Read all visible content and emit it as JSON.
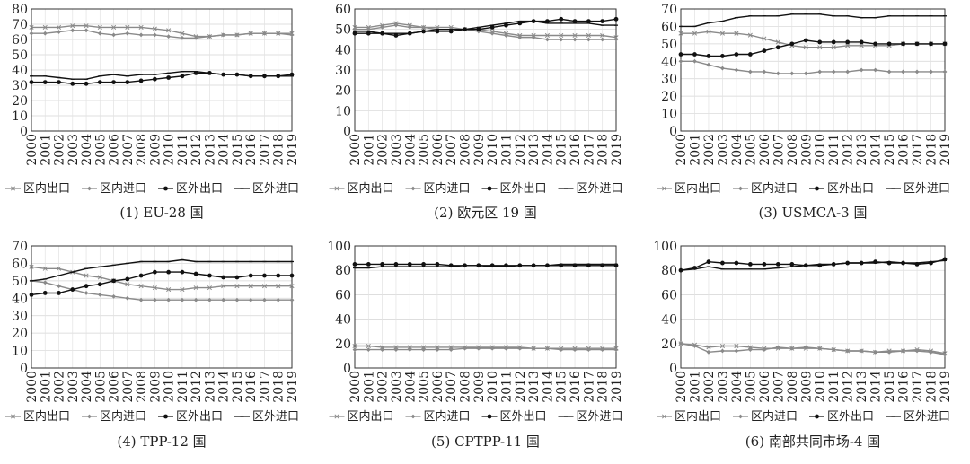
{
  "legend_labels": [
    "区内出口",
    "区内进口",
    "区外出口",
    "区外进口"
  ],
  "years": [
    "2000",
    "2001",
    "2002",
    "2003",
    "2004",
    "2005",
    "2006",
    "2007",
    "2008",
    "2009",
    "2010",
    "2011",
    "2012",
    "2013",
    "2014",
    "2015",
    "2016",
    "2017",
    "2018",
    "2019"
  ],
  "colors": {
    "intra_export": "#8a8a8a",
    "intra_import": "#8a8a8a",
    "extra_export": "#111111",
    "extra_import": "#111111"
  },
  "chart_data": [
    {
      "type": "line",
      "title": "(1) EU-28 国",
      "ylim": [
        0,
        80
      ],
      "yticks": [
        0,
        10,
        20,
        30,
        40,
        50,
        60,
        70,
        80
      ],
      "series": [
        {
          "name": "区内出口",
          "values": [
            68,
            68,
            68,
            69,
            69,
            68,
            68,
            68,
            68,
            67,
            66,
            64,
            62,
            62,
            63,
            63,
            64,
            64,
            64,
            64
          ]
        },
        {
          "name": "区内进口",
          "values": [
            64,
            64,
            65,
            66,
            66,
            64,
            63,
            64,
            63,
            63,
            62,
            61,
            61,
            62,
            63,
            63,
            64,
            64,
            64,
            63
          ]
        },
        {
          "name": "区外出口",
          "values": [
            32,
            32,
            32,
            31,
            31,
            32,
            32,
            32,
            33,
            34,
            35,
            36,
            38,
            38,
            37,
            37,
            36,
            36,
            36,
            37
          ]
        },
        {
          "name": "区外进口",
          "values": [
            36,
            36,
            35,
            34,
            34,
            36,
            37,
            36,
            37,
            37,
            38,
            39,
            39,
            38,
            37,
            37,
            36,
            36,
            36,
            36
          ]
        }
      ]
    },
    {
      "type": "line",
      "title": "(2) 欧元区 19 国",
      "ylim": [
        0,
        60
      ],
      "yticks": [
        0,
        10,
        20,
        30,
        40,
        50,
        60
      ],
      "series": [
        {
          "name": "区内出口",
          "values": [
            51,
            51,
            52,
            53,
            52,
            51,
            51,
            51,
            50,
            50,
            49,
            48,
            47,
            47,
            47,
            47,
            47,
            47,
            47,
            46
          ]
        },
        {
          "name": "区内进口",
          "values": [
            50,
            50,
            51,
            52,
            51,
            51,
            50,
            50,
            50,
            49,
            48,
            47,
            46,
            46,
            45,
            45,
            45,
            45,
            45,
            45
          ]
        },
        {
          "name": "区外出口",
          "values": [
            48,
            48,
            48,
            47,
            48,
            49,
            49,
            49,
            50,
            50,
            51,
            52,
            53,
            54,
            54,
            55,
            54,
            54,
            54,
            55
          ]
        },
        {
          "name": "区外进口",
          "values": [
            49,
            49,
            48,
            48,
            48,
            49,
            50,
            50,
            50,
            51,
            52,
            53,
            54,
            54,
            53,
            53,
            53,
            53,
            52,
            52
          ]
        }
      ]
    },
    {
      "type": "line",
      "title": "(3) USMCA-3 国",
      "ylim": [
        0,
        70
      ],
      "yticks": [
        0,
        10,
        20,
        30,
        40,
        50,
        60,
        70
      ],
      "series": [
        {
          "name": "区内出口",
          "values": [
            56,
            56,
            57,
            56,
            56,
            55,
            53,
            51,
            49,
            48,
            48,
            48,
            49,
            49,
            49,
            49,
            50,
            50,
            50,
            50
          ]
        },
        {
          "name": "区内进口",
          "values": [
            40,
            40,
            38,
            36,
            35,
            34,
            34,
            33,
            33,
            33,
            34,
            34,
            34,
            35,
            35,
            34,
            34,
            34,
            34,
            34
          ]
        },
        {
          "name": "区外出口",
          "values": [
            44,
            44,
            43,
            43,
            44,
            44,
            46,
            48,
            50,
            52,
            51,
            51,
            51,
            51,
            50,
            50,
            50,
            50,
            50,
            50
          ]
        },
        {
          "name": "区外进口",
          "values": [
            60,
            60,
            62,
            63,
            65,
            66,
            66,
            66,
            67,
            67,
            67,
            66,
            66,
            65,
            65,
            66,
            66,
            66,
            66,
            66
          ]
        }
      ]
    },
    {
      "type": "line",
      "title": "(4) TPP-12 国",
      "ylim": [
        0,
        70
      ],
      "yticks": [
        0,
        10,
        20,
        30,
        40,
        50,
        60,
        70
      ],
      "series": [
        {
          "name": "区内出口",
          "values": [
            58,
            57,
            57,
            55,
            53,
            52,
            50,
            48,
            47,
            46,
            45,
            45,
            46,
            46,
            47,
            47,
            47,
            47,
            47,
            47
          ]
        },
        {
          "name": "区内进口",
          "values": [
            50,
            49,
            47,
            45,
            43,
            42,
            41,
            40,
            39,
            39,
            39,
            39,
            39,
            39,
            39,
            39,
            39,
            39,
            39,
            39
          ]
        },
        {
          "name": "区外出口",
          "values": [
            42,
            43,
            43,
            45,
            47,
            48,
            50,
            51,
            53,
            55,
            55,
            55,
            54,
            53,
            52,
            52,
            53,
            53,
            53,
            53
          ]
        },
        {
          "name": "区外进口",
          "values": [
            50,
            51,
            53,
            55,
            57,
            58,
            59,
            60,
            61,
            61,
            61,
            62,
            61,
            61,
            61,
            61,
            61,
            61,
            61,
            61
          ]
        }
      ]
    },
    {
      "type": "line",
      "title": "(5) CPTPP-11 国",
      "ylim": [
        0,
        100
      ],
      "yticks": [
        0,
        20,
        40,
        60,
        80,
        100
      ],
      "series": [
        {
          "name": "区内出口",
          "values": [
            18,
            18,
            17,
            17,
            17,
            17,
            17,
            17,
            17,
            17,
            17,
            17,
            17,
            16,
            16,
            16,
            16,
            16,
            16,
            16
          ]
        },
        {
          "name": "区内进口",
          "values": [
            15,
            15,
            15,
            15,
            15,
            15,
            15,
            15,
            16,
            16,
            16,
            16,
            16,
            16,
            16,
            15,
            15,
            15,
            15,
            15
          ]
        },
        {
          "name": "区外出口",
          "values": [
            85,
            85,
            85,
            85,
            85,
            85,
            85,
            84,
            84,
            84,
            84,
            84,
            84,
            84,
            84,
            84,
            84,
            84,
            84,
            84
          ]
        },
        {
          "name": "区外进口",
          "values": [
            82,
            82,
            83,
            83,
            83,
            83,
            83,
            83,
            84,
            84,
            83,
            83,
            84,
            84,
            84,
            85,
            85,
            85,
            85,
            85
          ]
        }
      ]
    },
    {
      "type": "line",
      "title": "(6) 南部共同市场-4 国",
      "ylim": [
        0,
        100
      ],
      "yticks": [
        0,
        20,
        40,
        60,
        80,
        100
      ],
      "series": [
        {
          "name": "区内出口",
          "values": [
            20,
            19,
            17,
            18,
            18,
            17,
            16,
            16,
            16,
            16,
            16,
            15,
            14,
            14,
            13,
            14,
            14,
            15,
            14,
            12
          ]
        },
        {
          "name": "区内进口",
          "values": [
            20,
            18,
            13,
            14,
            14,
            15,
            15,
            17,
            16,
            17,
            16,
            15,
            14,
            14,
            13,
            13,
            14,
            14,
            13,
            11
          ]
        },
        {
          "name": "区外出口",
          "values": [
            80,
            82,
            87,
            86,
            86,
            85,
            85,
            85,
            85,
            84,
            84,
            85,
            86,
            86,
            87,
            86,
            86,
            85,
            86,
            89
          ]
        },
        {
          "name": "区外进口",
          "values": [
            80,
            81,
            83,
            81,
            81,
            81,
            81,
            82,
            83,
            84,
            85,
            85,
            86,
            86,
            86,
            87,
            86,
            86,
            87,
            88
          ]
        }
      ]
    }
  ]
}
